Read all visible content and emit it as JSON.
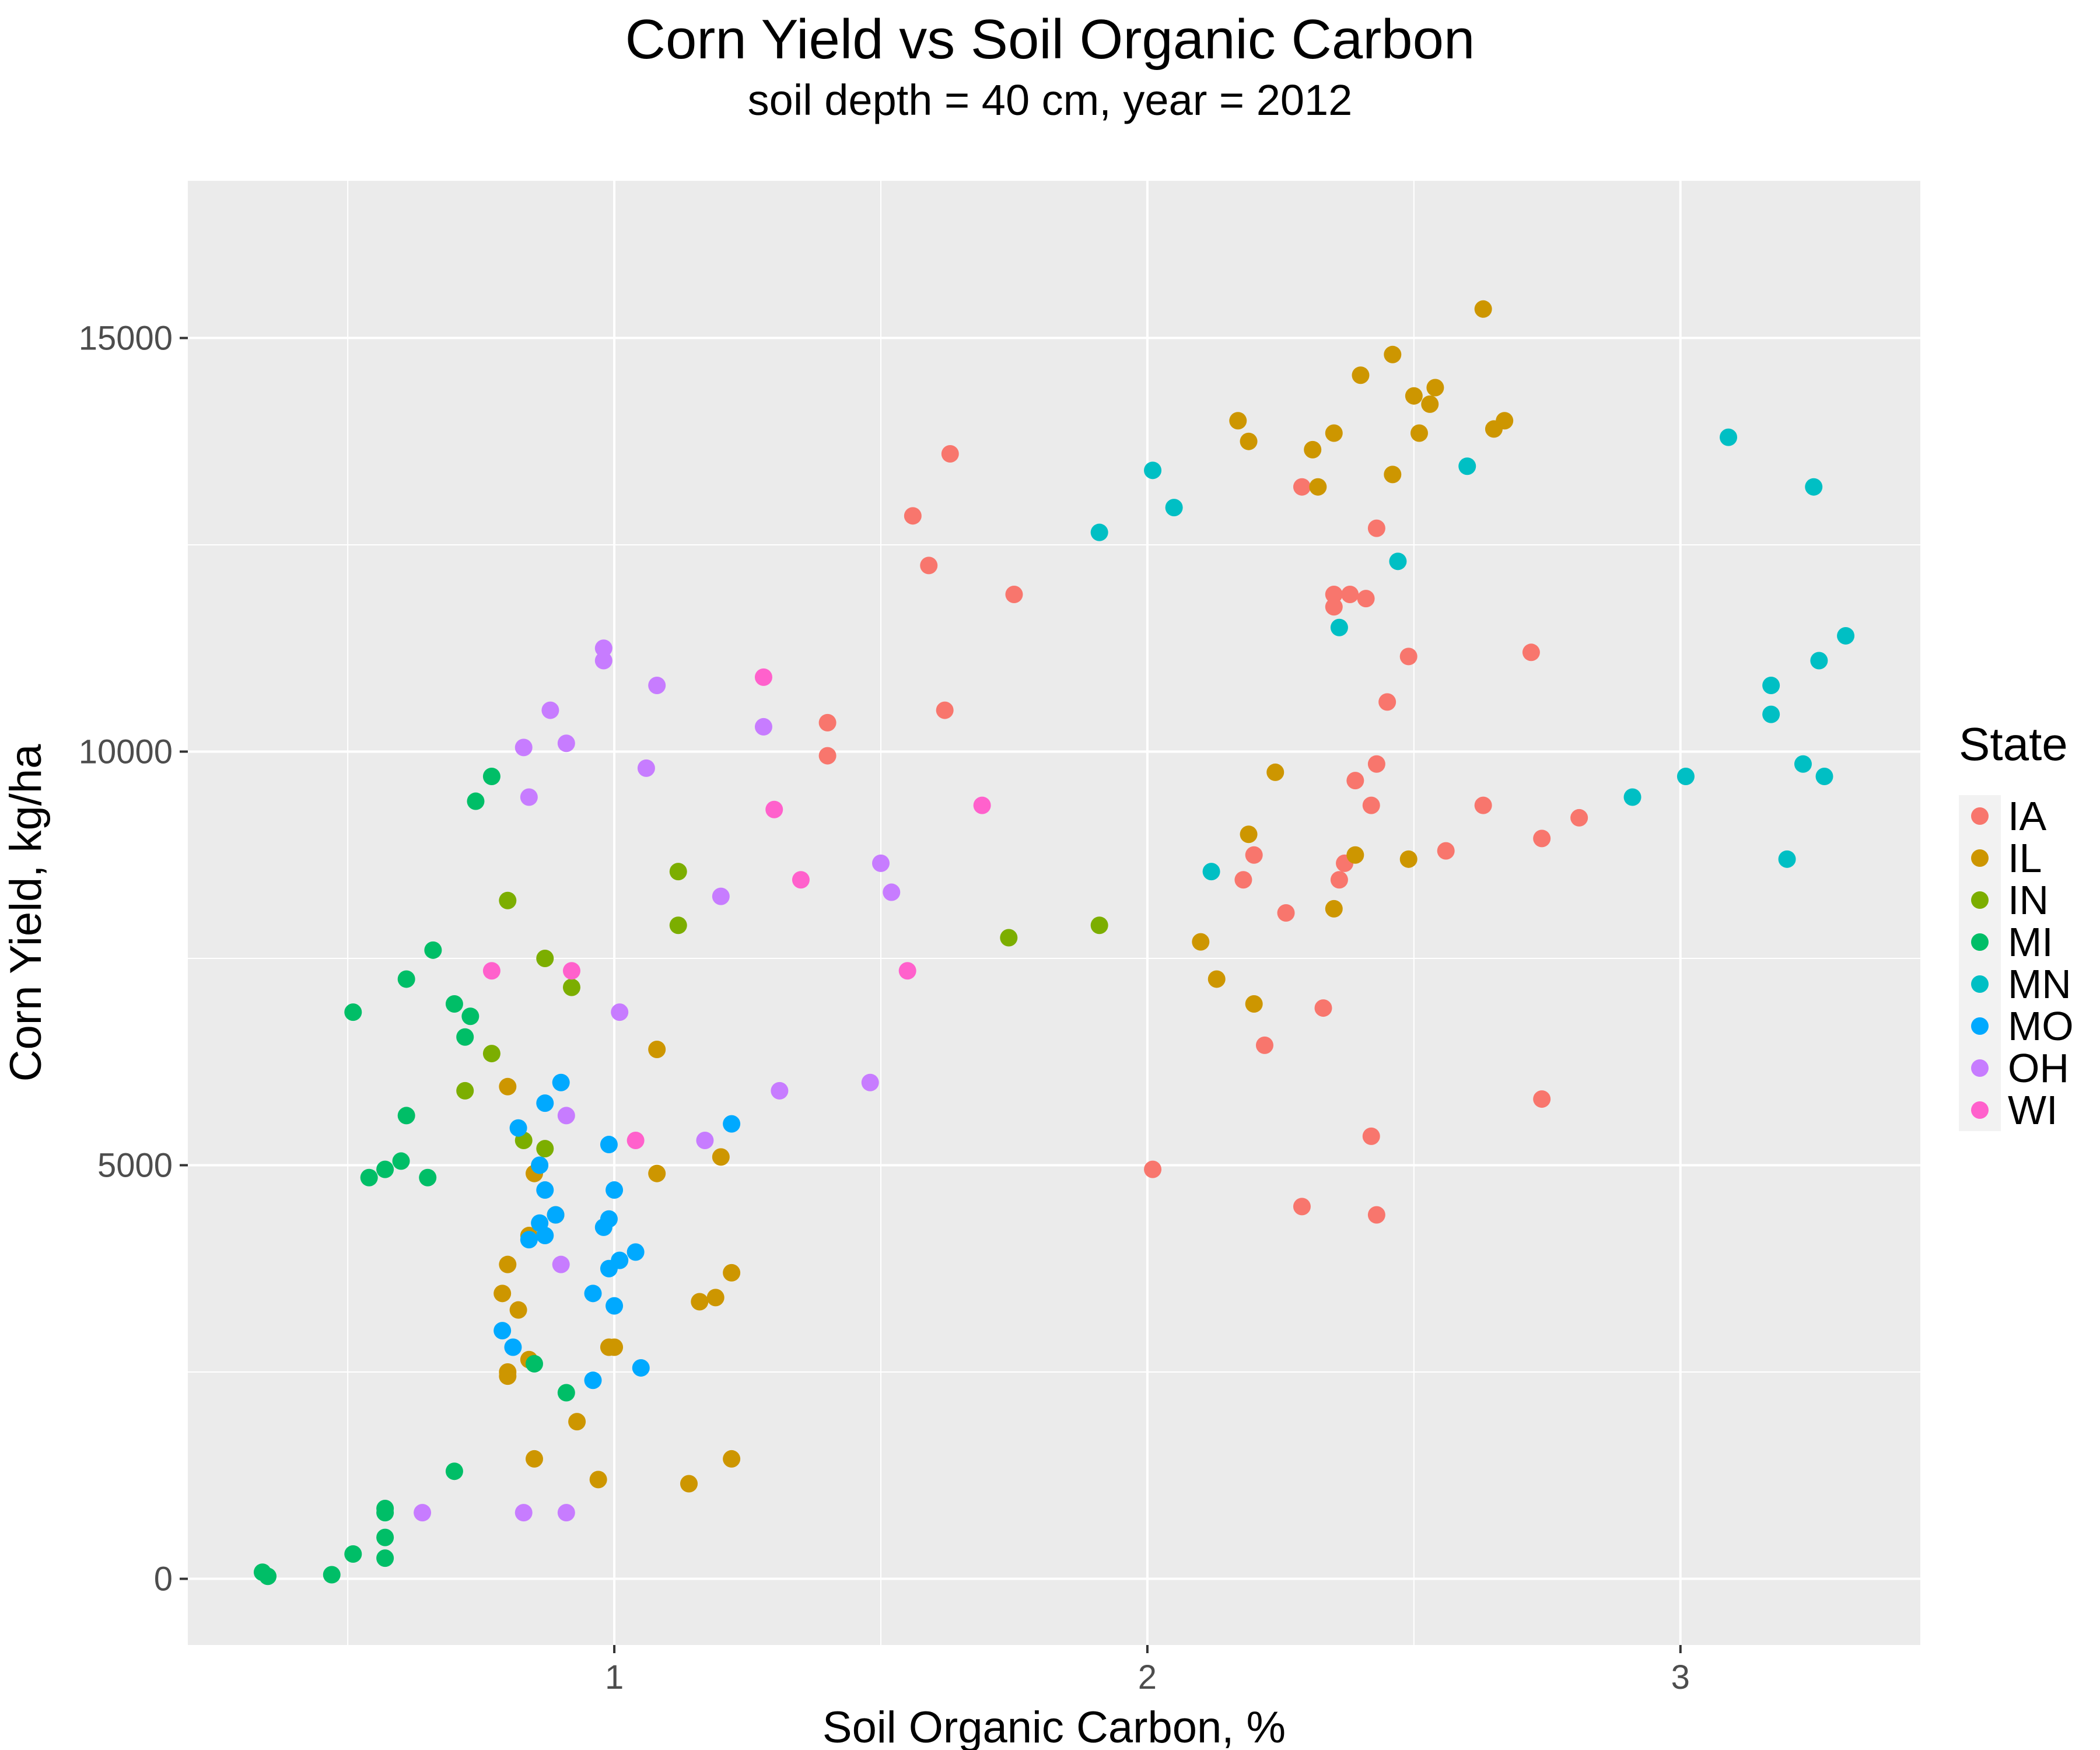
{
  "chart_data": {
    "type": "scatter",
    "title": "Corn Yield vs Soil Organic Carbon",
    "subtitle": "soil depth = 40 cm, year = 2012",
    "xlabel": "Soil Organic Carbon, %",
    "ylabel": "Corn Yield, kg/ha",
    "xlim": [
      0.2,
      3.45
    ],
    "ylim": [
      -800,
      16900
    ],
    "x_ticks": [
      1,
      2,
      3
    ],
    "y_ticks": [
      0,
      5000,
      10000,
      15000
    ],
    "grid": true,
    "legend": {
      "title": "State",
      "position": "right"
    },
    "series": [
      {
        "name": "IA",
        "color": "#F8766D",
        "points": [
          [
            1.4,
            10350
          ],
          [
            1.4,
            9950
          ],
          [
            1.56,
            12850
          ],
          [
            1.59,
            12250
          ],
          [
            1.63,
            13600
          ],
          [
            1.62,
            10500
          ],
          [
            1.75,
            11900
          ],
          [
            2.01,
            4950
          ],
          [
            2.18,
            8450
          ],
          [
            2.2,
            8750
          ],
          [
            2.22,
            6450
          ],
          [
            2.26,
            8050
          ],
          [
            2.29,
            13200
          ],
          [
            2.29,
            4500
          ],
          [
            2.33,
            6900
          ],
          [
            2.35,
            11900
          ],
          [
            2.35,
            11750
          ],
          [
            2.36,
            8450
          ],
          [
            2.37,
            8650
          ],
          [
            2.38,
            11900
          ],
          [
            2.39,
            9650
          ],
          [
            2.41,
            11850
          ],
          [
            2.42,
            9350
          ],
          [
            2.42,
            5350
          ],
          [
            2.43,
            9850
          ],
          [
            2.43,
            12700
          ],
          [
            2.43,
            4400
          ],
          [
            2.45,
            10600
          ],
          [
            2.49,
            11150
          ],
          [
            2.56,
            8800
          ],
          [
            2.63,
            9350
          ],
          [
            2.72,
            11200
          ],
          [
            2.74,
            8950
          ],
          [
            2.74,
            5800
          ],
          [
            2.81,
            9200
          ]
        ]
      },
      {
        "name": "IL",
        "color": "#CD9600",
        "points": [
          [
            0.79,
            3450
          ],
          [
            0.8,
            5950
          ],
          [
            0.8,
            3800
          ],
          [
            0.8,
            2500
          ],
          [
            0.8,
            2450
          ],
          [
            0.82,
            3250
          ],
          [
            0.84,
            4150
          ],
          [
            0.84,
            2650
          ],
          [
            0.85,
            4900
          ],
          [
            0.85,
            1450
          ],
          [
            0.89,
            4400
          ],
          [
            0.93,
            1900
          ],
          [
            0.97,
            1200
          ],
          [
            0.99,
            2800
          ],
          [
            1.0,
            2800
          ],
          [
            1.08,
            6400
          ],
          [
            1.08,
            4900
          ],
          [
            1.14,
            1150
          ],
          [
            1.16,
            3350
          ],
          [
            1.19,
            3400
          ],
          [
            1.2,
            5100
          ],
          [
            1.22,
            3700
          ],
          [
            1.22,
            1450
          ],
          [
            2.1,
            7700
          ],
          [
            2.13,
            7250
          ],
          [
            2.17,
            14000
          ],
          [
            2.19,
            13750
          ],
          [
            2.19,
            9000
          ],
          [
            2.2,
            6950
          ],
          [
            2.24,
            9750
          ],
          [
            2.31,
            13650
          ],
          [
            2.32,
            13200
          ],
          [
            2.35,
            8100
          ],
          [
            2.35,
            13850
          ],
          [
            2.39,
            8750
          ],
          [
            2.4,
            14550
          ],
          [
            2.46,
            13350
          ],
          [
            2.46,
            14800
          ],
          [
            2.49,
            8700
          ],
          [
            2.5,
            14300
          ],
          [
            2.51,
            13850
          ],
          [
            2.53,
            14200
          ],
          [
            2.54,
            14400
          ],
          [
            2.63,
            15350
          ],
          [
            2.65,
            13900
          ],
          [
            2.67,
            14000
          ]
        ]
      },
      {
        "name": "IN",
        "color": "#7CAE00",
        "points": [
          [
            0.72,
            5900
          ],
          [
            0.77,
            6350
          ],
          [
            0.8,
            8200
          ],
          [
            0.83,
            5300
          ],
          [
            0.87,
            7500
          ],
          [
            0.87,
            5200
          ],
          [
            0.92,
            7150
          ],
          [
            1.12,
            8550
          ],
          [
            1.12,
            7900
          ],
          [
            1.74,
            7750
          ],
          [
            1.91,
            7900
          ]
        ]
      },
      {
        "name": "MI",
        "color": "#00BE67",
        "points": [
          [
            0.34,
            80
          ],
          [
            0.35,
            30
          ],
          [
            0.47,
            50
          ],
          [
            0.51,
            6850
          ],
          [
            0.51,
            300
          ],
          [
            0.54,
            4850
          ],
          [
            0.57,
            4950
          ],
          [
            0.57,
            800
          ],
          [
            0.57,
            500
          ],
          [
            0.57,
            850
          ],
          [
            0.57,
            250
          ],
          [
            0.6,
            5050
          ],
          [
            0.61,
            5600
          ],
          [
            0.61,
            7250
          ],
          [
            0.65,
            4850
          ],
          [
            0.66,
            7600
          ],
          [
            0.7,
            6950
          ],
          [
            0.7,
            1300
          ],
          [
            0.72,
            6550
          ],
          [
            0.73,
            6800
          ],
          [
            0.74,
            9400
          ],
          [
            0.77,
            9700
          ],
          [
            0.85,
            2600
          ],
          [
            0.91,
            2250
          ]
        ]
      },
      {
        "name": "MN",
        "color": "#00BFC4",
        "points": [
          [
            1.91,
            12650
          ],
          [
            2.01,
            13400
          ],
          [
            2.05,
            12950
          ],
          [
            2.12,
            8550
          ],
          [
            2.36,
            11500
          ],
          [
            2.47,
            12300
          ],
          [
            2.6,
            13450
          ],
          [
            2.91,
            9450
          ],
          [
            3.01,
            9700
          ],
          [
            3.09,
            13800
          ],
          [
            3.17,
            10800
          ],
          [
            3.17,
            10450
          ],
          [
            3.2,
            8700
          ],
          [
            3.23,
            9850
          ],
          [
            3.25,
            13200
          ],
          [
            3.26,
            11100
          ],
          [
            3.27,
            9700
          ],
          [
            3.31,
            11400
          ]
        ]
      },
      {
        "name": "MO",
        "color": "#00A9FF",
        "points": [
          [
            0.79,
            3000
          ],
          [
            0.81,
            2800
          ],
          [
            0.82,
            5450
          ],
          [
            0.84,
            4100
          ],
          [
            0.86,
            4300
          ],
          [
            0.86,
            5000
          ],
          [
            0.87,
            5750
          ],
          [
            0.87,
            4700
          ],
          [
            0.87,
            4150
          ],
          [
            0.89,
            4400
          ],
          [
            0.9,
            6000
          ],
          [
            0.96,
            3450
          ],
          [
            0.96,
            2400
          ],
          [
            0.98,
            4250
          ],
          [
            0.99,
            4350
          ],
          [
            0.99,
            5250
          ],
          [
            0.99,
            3750
          ],
          [
            1.0,
            4700
          ],
          [
            1.0,
            3300
          ],
          [
            1.01,
            3850
          ],
          [
            1.04,
            3950
          ],
          [
            1.05,
            2550
          ],
          [
            1.22,
            5500
          ]
        ]
      },
      {
        "name": "OH",
        "color": "#C77CFF",
        "points": [
          [
            0.64,
            800
          ],
          [
            0.83,
            10050
          ],
          [
            0.83,
            800
          ],
          [
            0.84,
            9450
          ],
          [
            0.88,
            10500
          ],
          [
            0.9,
            3800
          ],
          [
            0.91,
            10100
          ],
          [
            0.91,
            5600
          ],
          [
            0.91,
            800
          ],
          [
            0.98,
            11250
          ],
          [
            0.98,
            11100
          ],
          [
            1.01,
            6850
          ],
          [
            1.06,
            9800
          ],
          [
            1.08,
            10800
          ],
          [
            1.17,
            5300
          ],
          [
            1.2,
            8250
          ],
          [
            1.28,
            10300
          ],
          [
            1.31,
            5900
          ],
          [
            1.48,
            6000
          ],
          [
            1.5,
            8650
          ],
          [
            1.52,
            8300
          ]
        ]
      },
      {
        "name": "WI",
        "color": "#FF61CC",
        "points": [
          [
            0.77,
            7350
          ],
          [
            0.92,
            7350
          ],
          [
            1.04,
            5300
          ],
          [
            1.28,
            10900
          ],
          [
            1.3,
            9300
          ],
          [
            1.35,
            8450
          ],
          [
            1.55,
            7350
          ],
          [
            1.69,
            9350
          ]
        ]
      }
    ]
  }
}
